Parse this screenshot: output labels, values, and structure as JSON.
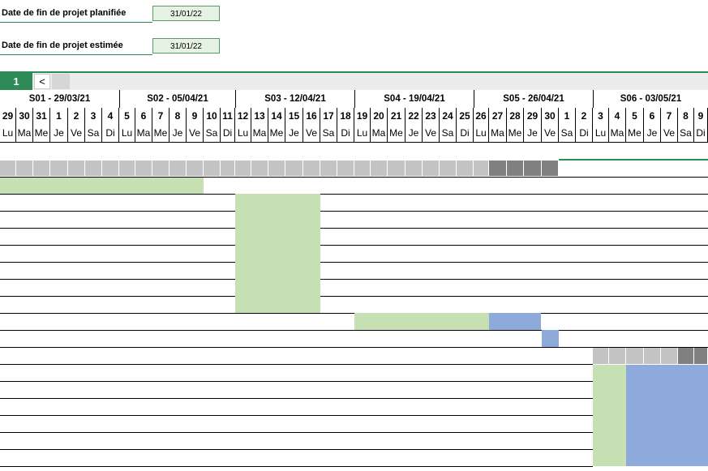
{
  "project_info": {
    "planned_end_label": "Date de fin de projet planifiée",
    "planned_end_value": "31/01/22",
    "estimated_end_label": "Date de fin de projet estimée",
    "estimated_end_value": "31/01/22"
  },
  "timeline_nav": {
    "page_number": "1",
    "prev_label": "<"
  },
  "weeks": [
    "S01 - 29/03/21",
    "S02 - 05/04/21",
    "S03 - 12/04/21",
    "S04 - 19/04/21",
    "S05 - 26/04/21",
    "S06 - 03/05/21"
  ],
  "days": [
    {
      "num": "29",
      "name": "Lu"
    },
    {
      "num": "30",
      "name": "Ma"
    },
    {
      "num": "31",
      "name": "Me"
    },
    {
      "num": "1",
      "name": "Je"
    },
    {
      "num": "2",
      "name": "Ve"
    },
    {
      "num": "3",
      "name": "Sa"
    },
    {
      "num": "4",
      "name": "Di"
    },
    {
      "num": "5",
      "name": "Lu"
    },
    {
      "num": "6",
      "name": "Ma"
    },
    {
      "num": "7",
      "name": "Me"
    },
    {
      "num": "8",
      "name": "Je"
    },
    {
      "num": "9",
      "name": "Ve"
    },
    {
      "num": "10",
      "name": "Sa"
    },
    {
      "num": "11",
      "name": "Di"
    },
    {
      "num": "12",
      "name": "Lu"
    },
    {
      "num": "13",
      "name": "Ma"
    },
    {
      "num": "14",
      "name": "Me"
    },
    {
      "num": "15",
      "name": "Je"
    },
    {
      "num": "16",
      "name": "Ve"
    },
    {
      "num": "17",
      "name": "Sa"
    },
    {
      "num": "18",
      "name": "Di"
    },
    {
      "num": "19",
      "name": "Lu"
    },
    {
      "num": "20",
      "name": "Ma"
    },
    {
      "num": "21",
      "name": "Me"
    },
    {
      "num": "22",
      "name": "Je"
    },
    {
      "num": "23",
      "name": "Ve"
    },
    {
      "num": "24",
      "name": "Sa"
    },
    {
      "num": "25",
      "name": "Di"
    },
    {
      "num": "26",
      "name": "Lu"
    },
    {
      "num": "27",
      "name": "Ma"
    },
    {
      "num": "28",
      "name": "Me"
    },
    {
      "num": "29",
      "name": "Je"
    },
    {
      "num": "30",
      "name": "Ve"
    },
    {
      "num": "1",
      "name": "Sa"
    },
    {
      "num": "2",
      "name": "Di"
    },
    {
      "num": "3",
      "name": "Lu"
    },
    {
      "num": "4",
      "name": "Ma"
    },
    {
      "num": "5",
      "name": "Me"
    },
    {
      "num": "6",
      "name": "Je"
    },
    {
      "num": "7",
      "name": "Ve"
    },
    {
      "num": "8",
      "name": "Sa"
    },
    {
      "num": "9",
      "name": "Di"
    }
  ],
  "colors": {
    "accent": "#2e8b57",
    "planned_bar": "#c6e0b4",
    "actual_bar": "#8eaadb",
    "summary_grey": "#c3c3c3",
    "summary_dark": "#808080"
  }
}
